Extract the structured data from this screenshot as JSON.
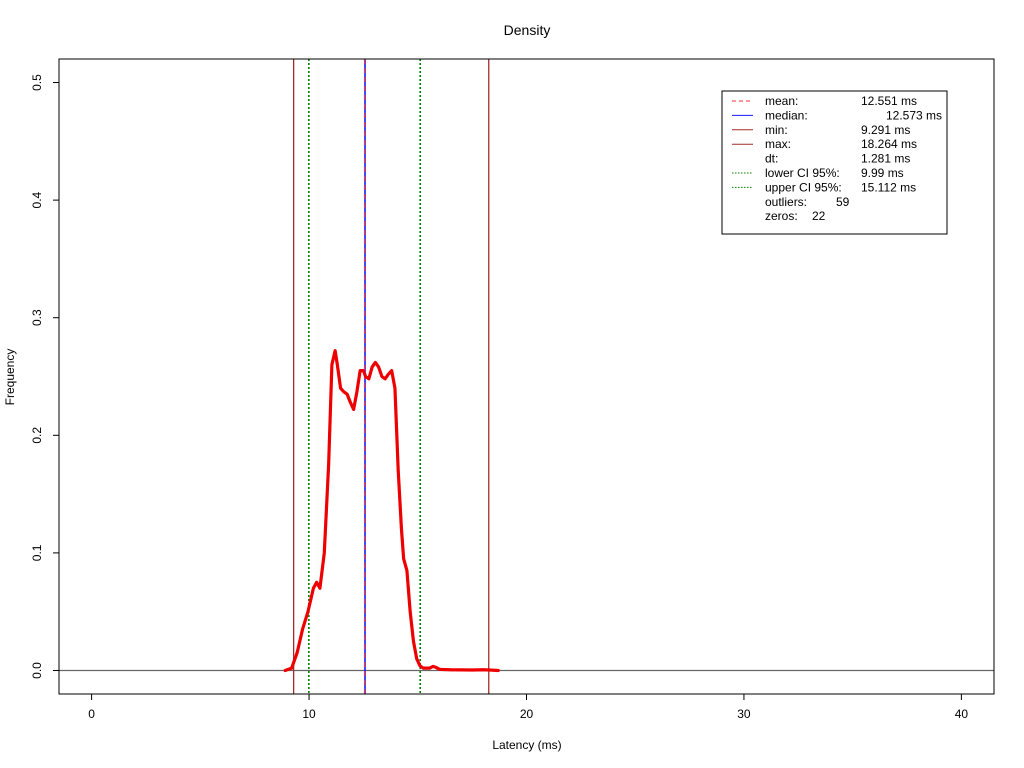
{
  "chart_data": {
    "type": "line",
    "title": "Density",
    "xlabel": "Latency (ms)",
    "ylabel": "Frequency",
    "xlim": [
      -1.5,
      41.5
    ],
    "ylim": [
      -0.02,
      0.52
    ],
    "xticks": [
      "0",
      "10",
      "20",
      "30",
      "40"
    ],
    "yticks": [
      "0.0",
      "0.1",
      "0.2",
      "0.3",
      "0.4",
      "0.5"
    ],
    "baseline": 0,
    "density": {
      "x": [
        8.9,
        9.2,
        9.45,
        9.7,
        9.95,
        10.2,
        10.35,
        10.5,
        10.7,
        10.9,
        11.05,
        11.2,
        11.3,
        11.45,
        11.6,
        11.75,
        11.9,
        12.05,
        12.2,
        12.35,
        12.5,
        12.6,
        12.75,
        12.9,
        13.05,
        13.2,
        13.35,
        13.5,
        13.65,
        13.8,
        13.95,
        14.1,
        14.25,
        14.35,
        14.5,
        14.65,
        14.8,
        14.95,
        15.1,
        15.25,
        15.4,
        15.55,
        15.7,
        15.85,
        16.0,
        16.2,
        16.5,
        17.0,
        17.5,
        18.0,
        18.3,
        18.7
      ],
      "y": [
        0.0,
        0.002,
        0.015,
        0.035,
        0.05,
        0.07,
        0.075,
        0.07,
        0.1,
        0.175,
        0.26,
        0.272,
        0.26,
        0.24,
        0.237,
        0.235,
        0.228,
        0.222,
        0.237,
        0.255,
        0.255,
        0.25,
        0.248,
        0.258,
        0.262,
        0.258,
        0.25,
        0.248,
        0.252,
        0.255,
        0.24,
        0.17,
        0.12,
        0.095,
        0.085,
        0.05,
        0.025,
        0.01,
        0.004,
        0.002,
        0.002,
        0.002,
        0.0035,
        0.0025,
        0.001,
        0.0008,
        0.0006,
        0.0005,
        0.0004,
        0.0006,
        0.0004,
        0.0
      ]
    },
    "markers": {
      "mean": 12.551,
      "median": 12.573,
      "min": 9.291,
      "max": 18.264,
      "lower_ci": 9.99,
      "upper_ci": 15.112
    },
    "colors": {
      "density": "#ee0000",
      "mean": "#ff3333",
      "median": "#1a1aff",
      "min": "#a52a2a",
      "max": "#a52a2a",
      "ci": "#008000",
      "baseline": "#666666"
    },
    "legend": {
      "placement": "top-right",
      "entries": [
        {
          "label": "mean:",
          "value": "12.551 ms",
          "style": "mean"
        },
        {
          "label": "median:",
          "value": "12.573 ms",
          "style": "median"
        },
        {
          "label": "min:",
          "value": "9.291 ms",
          "style": "min"
        },
        {
          "label": "max:",
          "value": "18.264 ms",
          "style": "max"
        },
        {
          "label": "dt:",
          "value": "1.281 ms",
          "style": "none"
        },
        {
          "label": "lower CI 95%:",
          "value": "9.99 ms",
          "style": "ci"
        },
        {
          "label": "upper CI 95%:",
          "value": "15.112 ms",
          "style": "ci"
        },
        {
          "label": "outliers:",
          "value": "59",
          "style": "none"
        },
        {
          "label": "zeros:",
          "value": "22",
          "style": "none"
        }
      ]
    }
  }
}
